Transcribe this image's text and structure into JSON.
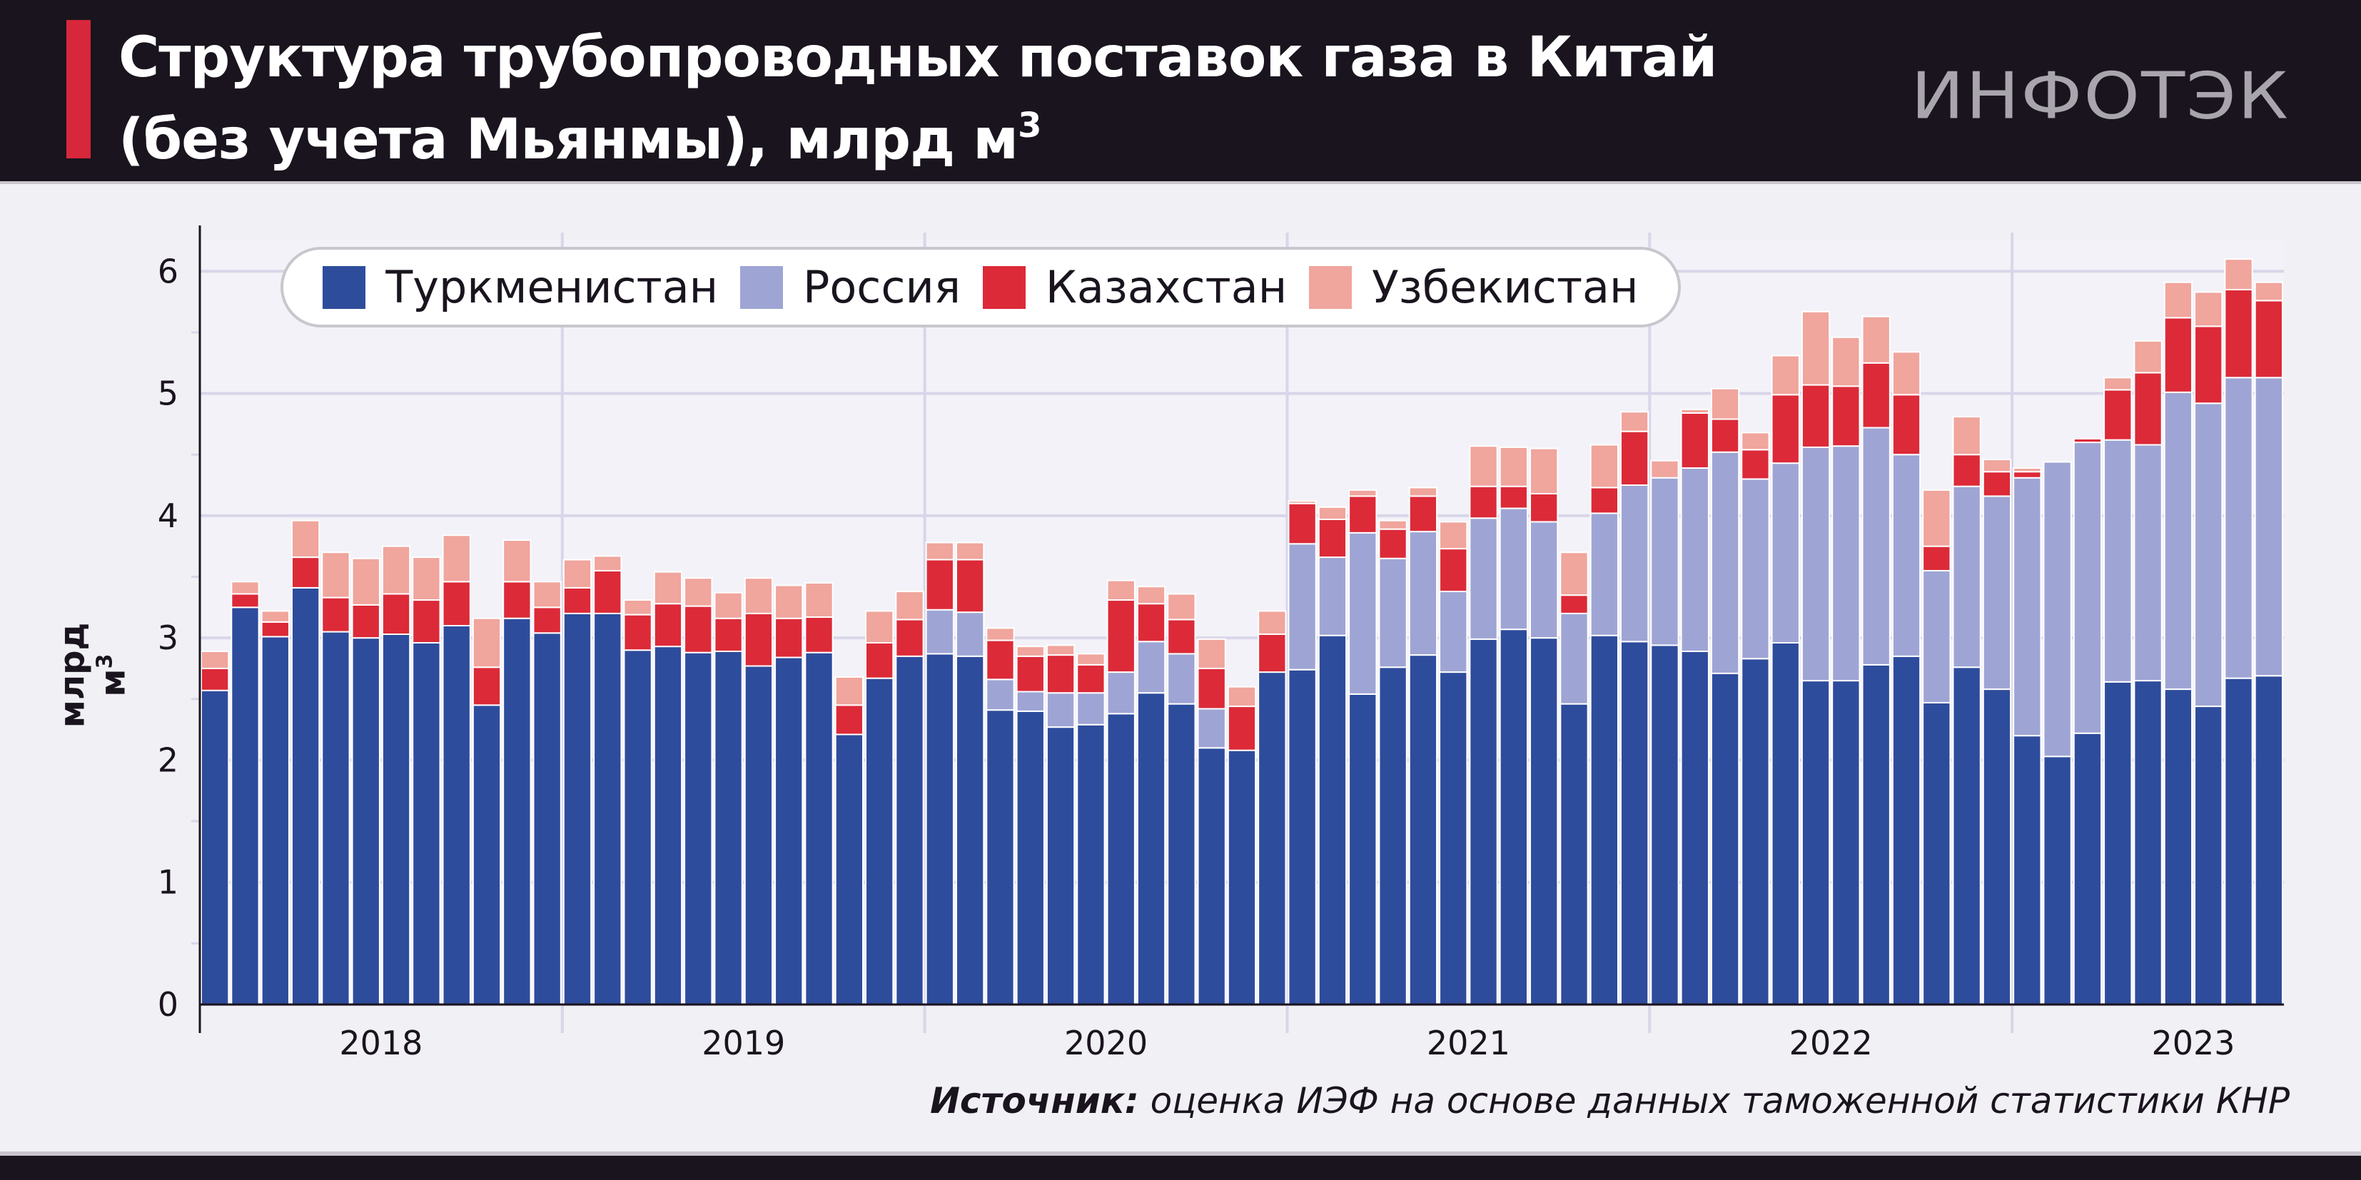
{
  "header": {
    "title_line1": "Структура трубопроводных поставок газа в Китай",
    "title_line2": "(без учета Мьянмы), млрд м",
    "title_sup": "3",
    "logo_text": "ИНФОТЭК"
  },
  "source": {
    "label": "Источник:",
    "text": " оценка ИЭФ на основе данных таможенной статистики КНР"
  },
  "colors": {
    "turkmenistan": "#2e4c9c",
    "russia": "#9ea5d4",
    "kazakhstan": "#dc2a38",
    "uzbekistan": "#f0a59d",
    "grid": "#d8d6e8",
    "axis": "#1a141e",
    "header_bg": "#1a141e",
    "accent": "#d7273a"
  },
  "chart_data": {
    "type": "bar",
    "stacked": true,
    "title": "Структура трубопроводных поставок газа в Китай (без учета Мьянмы), млрд м³",
    "xlabel": "",
    "ylabel": "млрд м",
    "ylabel_sup": "3",
    "ylim": [
      0,
      6.2
    ],
    "yticks": [
      0,
      1,
      2,
      3,
      4,
      5,
      6
    ],
    "years": [
      "2018",
      "2019",
      "2020",
      "2021",
      "2022",
      "2023"
    ],
    "months_per_year": 12,
    "legend_placement": "top",
    "series": [
      {
        "name": "Туркменистан",
        "key": "turkmenistan",
        "values": [
          2.57,
          3.25,
          3.01,
          3.41,
          3.05,
          3.0,
          3.03,
          2.96,
          3.1,
          2.45,
          3.16,
          3.04,
          3.2,
          3.2,
          2.9,
          2.93,
          2.88,
          2.89,
          2.77,
          2.84,
          2.88,
          2.21,
          2.67,
          2.85,
          2.87,
          2.85,
          2.41,
          2.4,
          2.27,
          2.29,
          2.38,
          2.55,
          2.46,
          2.1,
          2.08,
          2.72,
          2.74,
          3.02,
          2.54,
          2.76,
          2.86,
          2.72,
          2.99,
          3.07,
          3.0,
          2.46,
          3.02,
          2.97,
          2.94,
          2.89,
          2.71,
          2.83,
          2.96,
          2.65,
          2.65,
          2.78,
          2.85,
          2.47,
          2.76,
          2.58,
          2.2,
          2.03,
          2.22,
          2.64,
          2.65,
          2.58,
          2.44,
          2.67,
          2.69
        ]
      },
      {
        "name": "Россия",
        "key": "russia",
        "values": [
          0,
          0,
          0,
          0,
          0,
          0,
          0,
          0,
          0,
          0,
          0,
          0,
          0,
          0,
          0,
          0,
          0,
          0,
          0,
          0,
          0,
          0,
          0,
          0,
          0.36,
          0.36,
          0.25,
          0.16,
          0.28,
          0.26,
          0.34,
          0.42,
          0.41,
          0.32,
          0,
          0,
          1.03,
          0.64,
          1.32,
          0.89,
          1.01,
          0.66,
          0.99,
          0.99,
          0.95,
          0.74,
          1.0,
          1.28,
          1.37,
          1.5,
          1.81,
          1.47,
          1.47,
          1.91,
          1.92,
          1.94,
          1.65,
          1.08,
          1.48,
          1.58,
          2.11,
          2.41,
          2.38,
          1.98,
          1.93,
          2.43,
          2.48,
          2.46,
          2.44
        ]
      },
      {
        "name": "Казахстан",
        "key": "kazakhstan",
        "values": [
          0.18,
          0.11,
          0.12,
          0.25,
          0.28,
          0.27,
          0.33,
          0.35,
          0.36,
          0.31,
          0.3,
          0.21,
          0.21,
          0.35,
          0.29,
          0.35,
          0.38,
          0.27,
          0.43,
          0.32,
          0.29,
          0.24,
          0.29,
          0.3,
          0.41,
          0.43,
          0.32,
          0.29,
          0.31,
          0.23,
          0.59,
          0.31,
          0.28,
          0.33,
          0.36,
          0.31,
          0.33,
          0.31,
          0.3,
          0.24,
          0.29,
          0.35,
          0.26,
          0.18,
          0.23,
          0.15,
          0.21,
          0.44,
          0,
          0.45,
          0.27,
          0.24,
          0.56,
          0.51,
          0.49,
          0.53,
          0.49,
          0.2,
          0.26,
          0.2,
          0.05,
          0.0,
          0.03,
          0.41,
          0.59,
          0.61,
          0.63,
          0.72,
          0.63
        ]
      },
      {
        "name": "Узбекистан",
        "key": "uzbekistan",
        "values": [
          0.14,
          0.1,
          0.09,
          0.3,
          0.37,
          0.38,
          0.39,
          0.35,
          0.38,
          0.4,
          0.34,
          0.21,
          0.23,
          0.12,
          0.12,
          0.26,
          0.23,
          0.21,
          0.29,
          0.27,
          0.28,
          0.23,
          0.26,
          0.23,
          0.14,
          0.14,
          0.1,
          0.08,
          0.08,
          0.09,
          0.16,
          0.14,
          0.21,
          0.24,
          0.16,
          0.19,
          0.02,
          0.1,
          0.05,
          0.07,
          0.07,
          0.22,
          0.33,
          0.32,
          0.37,
          0.35,
          0.35,
          0.16,
          0.14,
          0.03,
          0.25,
          0.14,
          0.32,
          0.6,
          0.4,
          0.38,
          0.35,
          0.46,
          0.31,
          0.1,
          0.03,
          0.0,
          0.0,
          0.1,
          0.26,
          0.29,
          0.28,
          0.25,
          0.15
        ]
      }
    ]
  }
}
